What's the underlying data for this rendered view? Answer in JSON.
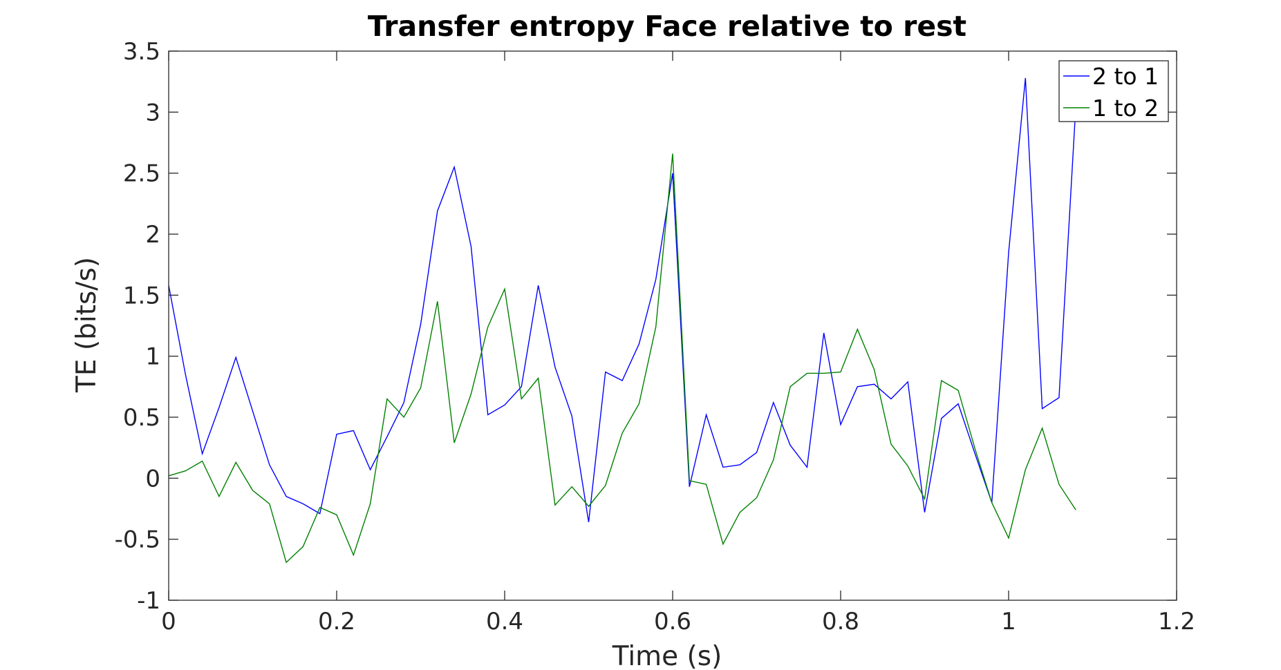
{
  "chart_data": {
    "type": "line",
    "title": "Transfer entropy Face relative to rest",
    "xlabel": "Time (s)",
    "ylabel": "TE (bits/s)",
    "xlim": [
      0,
      1.2
    ],
    "ylim": [
      -1,
      3.5
    ],
    "xticks": [
      0,
      0.2,
      0.4,
      0.6,
      0.8,
      1,
      1.2
    ],
    "xtick_labels": [
      "0",
      "0.2",
      "0.4",
      "0.6",
      "0.8",
      "1",
      "1.2"
    ],
    "yticks": [
      -1,
      -0.5,
      0,
      0.5,
      1,
      1.5,
      2,
      2.5,
      3,
      3.5
    ],
    "ytick_labels": [
      "-1",
      "-0.5",
      "0",
      "0.5",
      "1",
      "1.5",
      "2",
      "2.5",
      "3",
      "3.5"
    ],
    "grid": false,
    "legend_position": "top-right",
    "x": [
      0,
      0.02,
      0.04,
      0.06,
      0.08,
      0.1,
      0.12,
      0.14,
      0.16,
      0.18,
      0.2,
      0.22,
      0.24,
      0.26,
      0.28,
      0.3,
      0.32,
      0.34,
      0.36,
      0.38,
      0.4,
      0.42,
      0.44,
      0.46,
      0.48,
      0.5,
      0.52,
      0.54,
      0.56,
      0.58,
      0.6,
      0.62,
      0.64,
      0.66,
      0.68,
      0.7,
      0.72,
      0.74,
      0.76,
      0.78,
      0.8,
      0.82,
      0.84,
      0.86,
      0.88,
      0.9,
      0.92,
      0.94,
      0.96,
      0.98,
      1.0,
      1.02,
      1.04,
      1.06,
      1.08
    ],
    "series": [
      {
        "name": "2 to 1",
        "color": "#0000ff",
        "values": [
          1.58,
          0.85,
          0.2,
          0.58,
          0.99,
          0.55,
          0.11,
          -0.15,
          -0.21,
          -0.29,
          0.36,
          0.39,
          0.07,
          0.34,
          0.62,
          1.26,
          2.19,
          2.55,
          1.9,
          0.52,
          0.6,
          0.75,
          1.58,
          0.91,
          0.51,
          -0.36,
          0.87,
          0.8,
          1.1,
          1.63,
          2.5,
          -0.07,
          0.52,
          0.09,
          0.11,
          0.21,
          0.62,
          0.27,
          0.09,
          1.19,
          0.44,
          0.75,
          0.77,
          0.65,
          0.79,
          -0.28,
          0.49,
          0.61,
          0.2,
          -0.2,
          1.85,
          3.28,
          0.57,
          0.66,
          3.05
        ]
      },
      {
        "name": "1 to 2",
        "color": "#008000",
        "values": [
          0.02,
          0.06,
          0.14,
          -0.15,
          0.13,
          -0.1,
          -0.21,
          -0.69,
          -0.56,
          -0.24,
          -0.3,
          -0.63,
          -0.21,
          0.65,
          0.5,
          0.74,
          1.45,
          0.29,
          0.69,
          1.24,
          1.55,
          0.65,
          0.82,
          -0.22,
          -0.07,
          -0.23,
          -0.06,
          0.37,
          0.61,
          1.24,
          2.66,
          -0.02,
          -0.05,
          -0.54,
          -0.28,
          -0.16,
          0.15,
          0.75,
          0.86,
          0.86,
          0.87,
          1.22,
          0.89,
          0.28,
          0.1,
          -0.17,
          0.8,
          0.72,
          0.24,
          -0.2,
          -0.49,
          0.07,
          0.41,
          -0.05,
          -0.26
        ]
      }
    ]
  }
}
